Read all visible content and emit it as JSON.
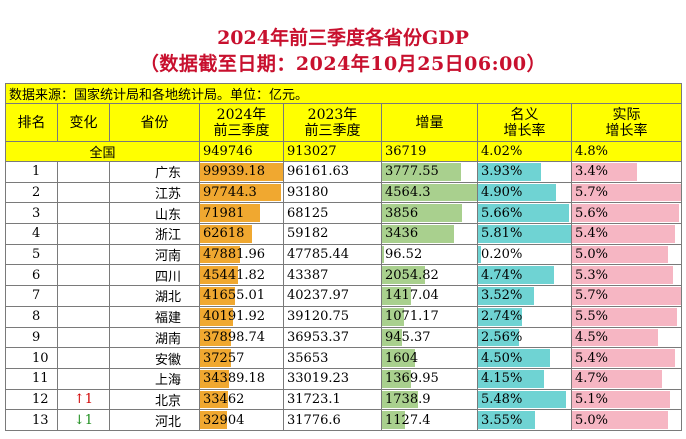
{
  "title": "2024年前三季度各省份GDP",
  "subtitle": "（数据截至日期：2024年10月25日06:00）",
  "source_note": "数据来源：国家统计局和各地统计局。单位：亿元。",
  "headers": {
    "rank": "排名",
    "change": "变化",
    "province": "省份",
    "gdp2024_l1": "2024年",
    "gdp2024_l2": "前三季度",
    "gdp2023_l1": "2023年",
    "gdp2023_l2": "前三季度",
    "increase": "增量",
    "nominal_l1": "名义",
    "nominal_l2": "增长率",
    "real_l1": "实际",
    "real_l2": "增长率"
  },
  "national": {
    "label": "全国",
    "gdp2024": "949746",
    "gdp2023": "913027",
    "increase": "36719",
    "nominal": "4.02%",
    "real": "4.8%"
  },
  "colors": {
    "title": "#c8102e",
    "header_bg": "#ffff00",
    "gdp_bar": "#f0a830",
    "increase_bar": "#a9d08e",
    "nominal_bar": "#6fd3d3",
    "real_bar": "#f6b6c3"
  },
  "rows": [
    {
      "rank": "1",
      "change": "",
      "change_dir": "",
      "province": "广东",
      "gdp2024": "99939.18",
      "gdp2023": "96161.63",
      "increase": "3777.55",
      "nominal": "3.93%",
      "real": "3.4%",
      "gdp_v": 99939.18,
      "inc_v": 3777.55,
      "nom_v": 3.93,
      "real_v": 3.4
    },
    {
      "rank": "2",
      "change": "",
      "change_dir": "",
      "province": "江苏",
      "gdp2024": "97744.3",
      "gdp2023": "93180",
      "increase": "4564.3",
      "nominal": "4.90%",
      "real": "5.7%",
      "gdp_v": 97744.3,
      "inc_v": 4564.3,
      "nom_v": 4.9,
      "real_v": 5.7
    },
    {
      "rank": "3",
      "change": "",
      "change_dir": "",
      "province": "山东",
      "gdp2024": "71981",
      "gdp2023": "68125",
      "increase": "3856",
      "nominal": "5.66%",
      "real": "5.6%",
      "gdp_v": 71981,
      "inc_v": 3856,
      "nom_v": 5.66,
      "real_v": 5.6
    },
    {
      "rank": "4",
      "change": "",
      "change_dir": "",
      "province": "浙江",
      "gdp2024": "62618",
      "gdp2023": "59182",
      "increase": "3436",
      "nominal": "5.81%",
      "real": "5.4%",
      "gdp_v": 62618,
      "inc_v": 3436,
      "nom_v": 5.81,
      "real_v": 5.4
    },
    {
      "rank": "5",
      "change": "",
      "change_dir": "",
      "province": "河南",
      "gdp2024": "47881.96",
      "gdp2023": "47785.44",
      "increase": "96.52",
      "nominal": "0.20%",
      "real": "5.0%",
      "gdp_v": 47881.96,
      "inc_v": 96.52,
      "nom_v": 0.2,
      "real_v": 5.0
    },
    {
      "rank": "6",
      "change": "",
      "change_dir": "",
      "province": "四川",
      "gdp2024": "45441.82",
      "gdp2023": "43387",
      "increase": "2054.82",
      "nominal": "4.74%",
      "real": "5.3%",
      "gdp_v": 45441.82,
      "inc_v": 2054.82,
      "nom_v": 4.74,
      "real_v": 5.3
    },
    {
      "rank": "7",
      "change": "",
      "change_dir": "",
      "province": "湖北",
      "gdp2024": "41655.01",
      "gdp2023": "40237.97",
      "increase": "1417.04",
      "nominal": "3.52%",
      "real": "5.7%",
      "gdp_v": 41655.01,
      "inc_v": 1417.04,
      "nom_v": 3.52,
      "real_v": 5.7
    },
    {
      "rank": "8",
      "change": "",
      "change_dir": "",
      "province": "福建",
      "gdp2024": "40191.92",
      "gdp2023": "39120.75",
      "increase": "1071.17",
      "nominal": "2.74%",
      "real": "5.5%",
      "gdp_v": 40191.92,
      "inc_v": 1071.17,
      "nom_v": 2.74,
      "real_v": 5.5
    },
    {
      "rank": "9",
      "change": "",
      "change_dir": "",
      "province": "湖南",
      "gdp2024": "37898.74",
      "gdp2023": "36953.37",
      "increase": "945.37",
      "nominal": "2.56%",
      "real": "4.5%",
      "gdp_v": 37898.74,
      "inc_v": 945.37,
      "nom_v": 2.56,
      "real_v": 4.5
    },
    {
      "rank": "10",
      "change": "",
      "change_dir": "",
      "province": "安徽",
      "gdp2024": "37257",
      "gdp2023": "35653",
      "increase": "1604",
      "nominal": "4.50%",
      "real": "5.4%",
      "gdp_v": 37257,
      "inc_v": 1604,
      "nom_v": 4.5,
      "real_v": 5.4
    },
    {
      "rank": "11",
      "change": "",
      "change_dir": "",
      "province": "上海",
      "gdp2024": "34389.18",
      "gdp2023": "33019.23",
      "increase": "1369.95",
      "nominal": "4.15%",
      "real": "4.7%",
      "gdp_v": 34389.18,
      "inc_v": 1369.95,
      "nom_v": 4.15,
      "real_v": 4.7
    },
    {
      "rank": "12",
      "change": "↑1",
      "change_dir": "up",
      "province": "北京",
      "gdp2024": "33462",
      "gdp2023": "31723.1",
      "increase": "1738.9",
      "nominal": "5.48%",
      "real": "5.1%",
      "gdp_v": 33462,
      "inc_v": 1738.9,
      "nom_v": 5.48,
      "real_v": 5.1
    },
    {
      "rank": "13",
      "change": "↓1",
      "change_dir": "down",
      "province": "河北",
      "gdp2024": "32904",
      "gdp2023": "31776.6",
      "increase": "1127.4",
      "nominal": "3.55%",
      "real": "5.0%",
      "gdp_v": 32904,
      "inc_v": 1127.4,
      "nom_v": 3.55,
      "real_v": 5.0
    }
  ]
}
